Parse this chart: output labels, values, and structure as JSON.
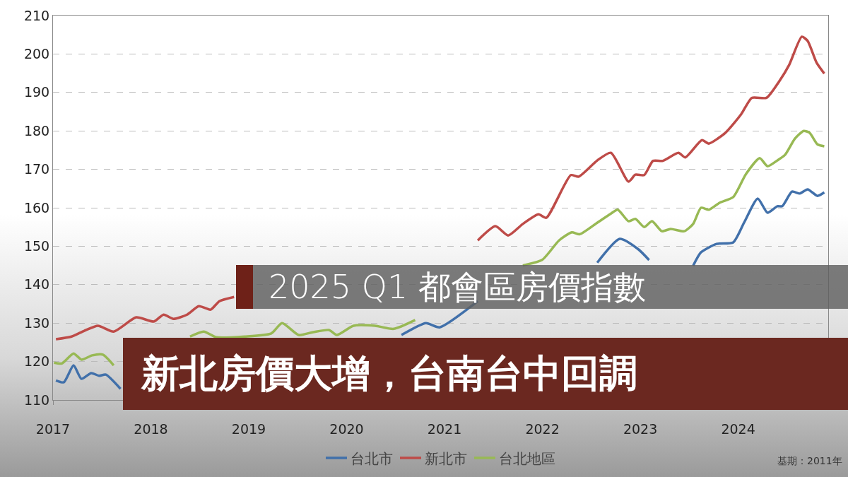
{
  "chart_data": {
    "type": "line",
    "title": "2025 Q1 都會區房價指數",
    "subtitle": "新北房價大增，台南台中回調",
    "annotations": [
      "基期：2011年"
    ],
    "xlim": [
      2017,
      2024.92
    ],
    "xticks": [
      2017,
      2018,
      2019,
      2020,
      2021,
      2022,
      2023,
      2024
    ],
    "ylim": [
      110,
      210
    ],
    "yticks": [
      110,
      120,
      130,
      140,
      150,
      160,
      170,
      180,
      190,
      200,
      210
    ],
    "grid": "y",
    "legend": "bottom",
    "marker": "none",
    "line_style": "solid",
    "series": [
      {
        "name": "台北市",
        "color": "#4170aa",
        "x": [
          2017.03,
          2017.11,
          2017.21,
          2017.29,
          2017.39,
          2017.47,
          2017.54,
          2017.69,
          2019,
          2020.56,
          2020.81,
          2020.95,
          2021.34,
          2021.62,
          2022.04,
          2022.34,
          2022.56,
          2022.79,
          2022.98,
          2023.09,
          2023.23,
          2023.42,
          2023.54,
          2023.62,
          2023.78,
          2023.95,
          2024.06,
          2024.2,
          2024.3,
          2024.4,
          2024.45,
          2024.55,
          2024.63,
          2024.71,
          2024.81,
          2024.88
        ],
        "values": [
          115.1,
          114.6,
          119,
          115.5,
          117,
          116.3,
          116.6,
          112.9,
          null,
          126.9,
          130,
          128.9,
          135.7,
          null,
          null,
          null,
          145.7,
          151.9,
          149.2,
          146.4,
          null,
          null,
          144.9,
          148.4,
          150.6,
          151,
          156.1,
          162.4,
          158.7,
          160.4,
          160.4,
          164.2,
          163.7,
          164.8,
          163.1,
          164
        ]
      },
      {
        "name": "新北市",
        "color": "#be4b48",
        "x": [
          2017.03,
          2017.19,
          2017.32,
          2017.46,
          2017.62,
          2017.85,
          2018.03,
          2018.13,
          2018.23,
          2018.37,
          2018.49,
          2018.61,
          2018.7,
          2018.85,
          2019.12,
          2019.26,
          2019.51,
          2019.73,
          2019.93,
          2020.29,
          2020.46,
          2020.81,
          2021.0,
          2021.34,
          2021.52,
          2021.65,
          2021.8,
          2021.96,
          2022.04,
          2022.29,
          2022.37,
          2022.56,
          2022.7,
          2022.88,
          2022.95,
          2023.04,
          2023.13,
          2023.23,
          2023.39,
          2023.46,
          2023.63,
          2023.7,
          2023.87,
          2024.03,
          2024.14,
          2024.29,
          2024.42,
          2024.52,
          2024.65,
          2024.71,
          2024.8,
          2024.88
        ],
        "values": [
          125.8,
          126.5,
          128,
          129.3,
          127.8,
          131.5,
          130.4,
          132.2,
          131.1,
          132.2,
          134.4,
          133.5,
          135.7,
          136.8,
          null,
          null,
          null,
          null,
          null,
          null,
          null,
          null,
          null,
          151.5,
          155.2,
          152.8,
          155.8,
          158.3,
          157.4,
          168.5,
          168.1,
          172.3,
          174.3,
          166.8,
          168.6,
          168.5,
          172.2,
          172.2,
          174.3,
          173.1,
          177.6,
          176.7,
          179.5,
          184.3,
          188.6,
          188.6,
          192.9,
          197.1,
          204.5,
          203.4,
          197.8,
          194.9
        ]
      },
      {
        "name": "台北地區",
        "color": "#98b954",
        "x": [
          2017.01,
          2017.09,
          2017.21,
          2017.29,
          2017.4,
          2017.51,
          2017.62,
          2018,
          2018.4,
          2018.54,
          2018.67,
          2018.96,
          2019.23,
          2019.34,
          2019.51,
          2019.65,
          2019.82,
          2019.9,
          2020.07,
          2020.29,
          2020.48,
          2020.7,
          2020.9,
          2021.1,
          2021.3,
          2021.54,
          2021.65,
          2021.8,
          2022.0,
          2022.17,
          2022.3,
          2022.38,
          2022.56,
          2022.7,
          2022.77,
          2022.88,
          2022.95,
          2023.04,
          2023.12,
          2023.22,
          2023.31,
          2023.45,
          2023.54,
          2023.62,
          2023.7,
          2023.81,
          2023.95,
          2024.08,
          2024.22,
          2024.3,
          2024.4,
          2024.48,
          2024.58,
          2024.67,
          2024.73,
          2024.81,
          2024.88
        ],
        "values": [
          119.7,
          119.5,
          122.1,
          120.5,
          121.6,
          121.8,
          119,
          null,
          126.5,
          127.8,
          126.3,
          126.5,
          127.3,
          130,
          126.9,
          127.6,
          128.2,
          126.9,
          129.3,
          129.3,
          128.5,
          130.8,
          null,
          null,
          null,
          null,
          null,
          145,
          146.5,
          151.5,
          153.6,
          153.1,
          156.1,
          158.5,
          159.5,
          156.5,
          157.1,
          155,
          156.5,
          153.9,
          154.5,
          153.9,
          155.8,
          160,
          159.5,
          161.3,
          162.8,
          168.8,
          172.9,
          170.8,
          172.3,
          173.8,
          178,
          180,
          179.5,
          176.5,
          176
        ]
      }
    ]
  }
}
